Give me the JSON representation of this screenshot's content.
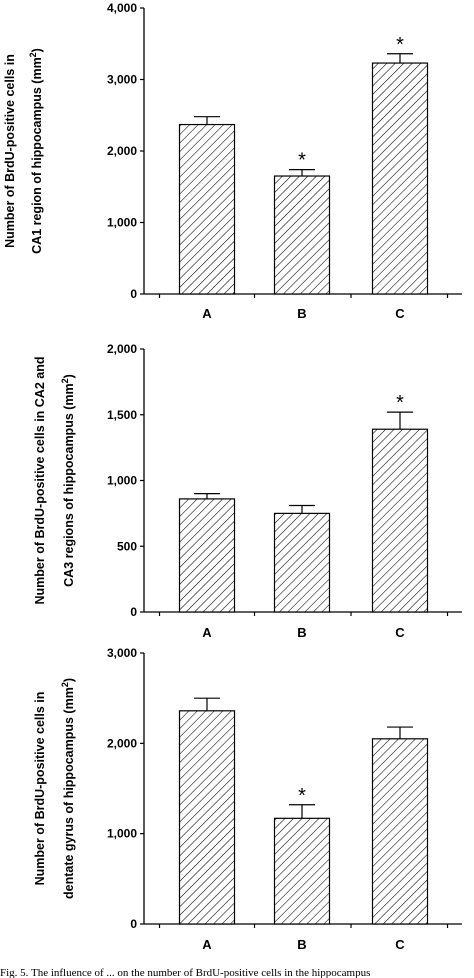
{
  "chart_data": [
    {
      "type": "bar",
      "categories": [
        "A",
        "B",
        "C"
      ],
      "values": [
        2370,
        1650,
        3230
      ],
      "errors": [
        110,
        90,
        130
      ],
      "significant": [
        "",
        "*",
        "*"
      ],
      "ylim": [
        0,
        4000
      ],
      "yticks": [
        "0",
        "1,000",
        "2,000",
        "3,000",
        "4,000"
      ],
      "ylabel_lines": [
        "Number of BrdU-positive cells in",
        "CA1 region of hippocampus (mm",
        "2",
        ")"
      ],
      "xlabel": ""
    },
    {
      "type": "bar",
      "categories": [
        "A",
        "B",
        "C"
      ],
      "values": [
        860,
        750,
        1390
      ],
      "errors": [
        40,
        60,
        130
      ],
      "significant": [
        "",
        "",
        "*"
      ],
      "ylim": [
        0,
        2000
      ],
      "yticks": [
        "0",
        "500",
        "1,000",
        "1,500",
        "2,000"
      ],
      "ylabel_lines": [
        "Number  of BrdU-positive cells in CA2 and",
        "CA3  regions of hippocampus (mm",
        "2",
        ")"
      ],
      "xlabel": ""
    },
    {
      "type": "bar",
      "categories": [
        "A",
        "B",
        "C"
      ],
      "values": [
        2360,
        1170,
        2050
      ],
      "errors": [
        140,
        150,
        130
      ],
      "significant": [
        "",
        "*",
        ""
      ],
      "ylim": [
        0,
        3000
      ],
      "yticks": [
        "0",
        "1,000",
        "2,000",
        "3,000"
      ],
      "ylabel_lines": [
        "Number of BrdU-positive cells in",
        "dentate gyrus of hippocampus (mm",
        "2",
        ")"
      ],
      "xlabel": ""
    }
  ],
  "caption": "Fig. 5. The influence of ... on the number of BrdU-positive cells in the hippocampus"
}
